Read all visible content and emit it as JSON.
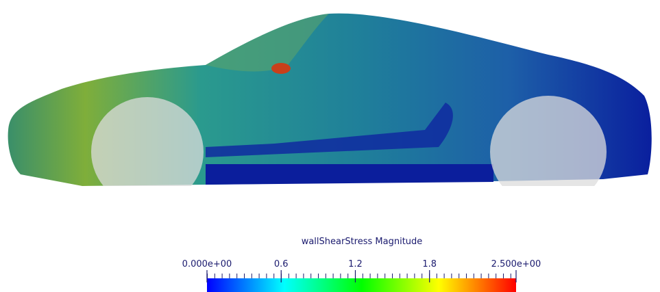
{
  "colorbar": {
    "title": "wallShearStress Magnitude",
    "range": [
      0,
      2.5
    ],
    "ticks": [
      {
        "value": 0,
        "label": "0.000e+00"
      },
      0.6,
      1.2,
      1.8,
      {
        "value": 2.5,
        "label": "2.500e+00"
      }
    ],
    "colors": [
      "#0000ff",
      "#00ffff",
      "#00ff00",
      "#ffff00",
      "#ff0000"
    ]
  }
}
